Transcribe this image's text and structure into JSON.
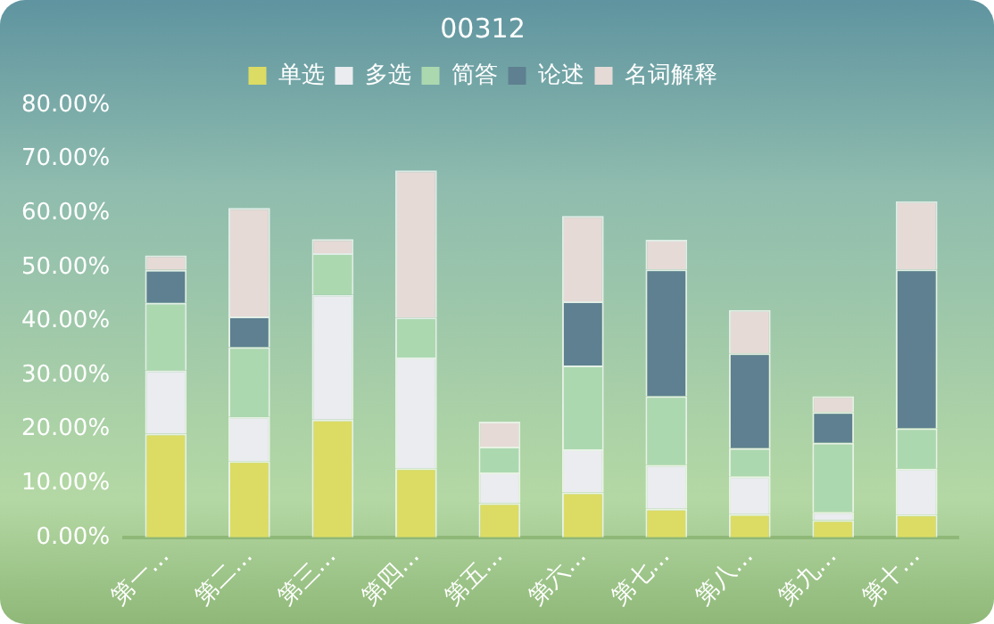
{
  "chart_data": {
    "type": "bar",
    "title": "00312",
    "stacked": true,
    "legend": "top",
    "grid": false,
    "categories": [
      "第一…",
      "第二…",
      "第三…",
      "第四…",
      "第五…",
      "第六…",
      "第七…",
      "第八…",
      "第九…",
      "第十…"
    ],
    "series": [
      {
        "name": "单选",
        "color": "#dcdc64",
        "values": [
          19.2,
          14.1,
          21.8,
          12.8,
          6.3,
          8.3,
          5.3,
          4.3,
          3.2,
          4.2
        ]
      },
      {
        "name": "多选",
        "color": "#eaecf0",
        "values": [
          11.7,
          8.2,
          23.1,
          20.5,
          5.7,
          8.0,
          8.1,
          7.0,
          1.5,
          8.5
        ]
      },
      {
        "name": "简答",
        "color": "#acd8b0",
        "values": [
          12.5,
          12.9,
          7.7,
          7.4,
          4.8,
          15.5,
          12.7,
          5.2,
          12.8,
          7.5
        ]
      },
      {
        "name": "论述",
        "color": "#5e8090",
        "values": [
          6.1,
          5.7,
          0,
          0,
          0,
          11.9,
          23.5,
          17.6,
          5.7,
          29.4
        ]
      },
      {
        "name": "名词解释",
        "color": "#e6dad6",
        "values": [
          2.7,
          20.1,
          2.6,
          27.2,
          4.6,
          15.8,
          5.5,
          8.0,
          2.9,
          12.6
        ]
      }
    ],
    "ylim": [
      0,
      80
    ],
    "yticks": [
      {
        "value": 0,
        "label": "0.00%"
      },
      {
        "value": 10,
        "label": "10.00%"
      },
      {
        "value": 20,
        "label": "20.00%"
      },
      {
        "value": 30,
        "label": "30.00%"
      },
      {
        "value": 40,
        "label": "40.00%"
      },
      {
        "value": 50,
        "label": "50.00%"
      },
      {
        "value": 60,
        "label": "60.00%"
      },
      {
        "value": 70,
        "label": "70.00%"
      },
      {
        "value": 80,
        "label": "80.00%"
      }
    ]
  }
}
